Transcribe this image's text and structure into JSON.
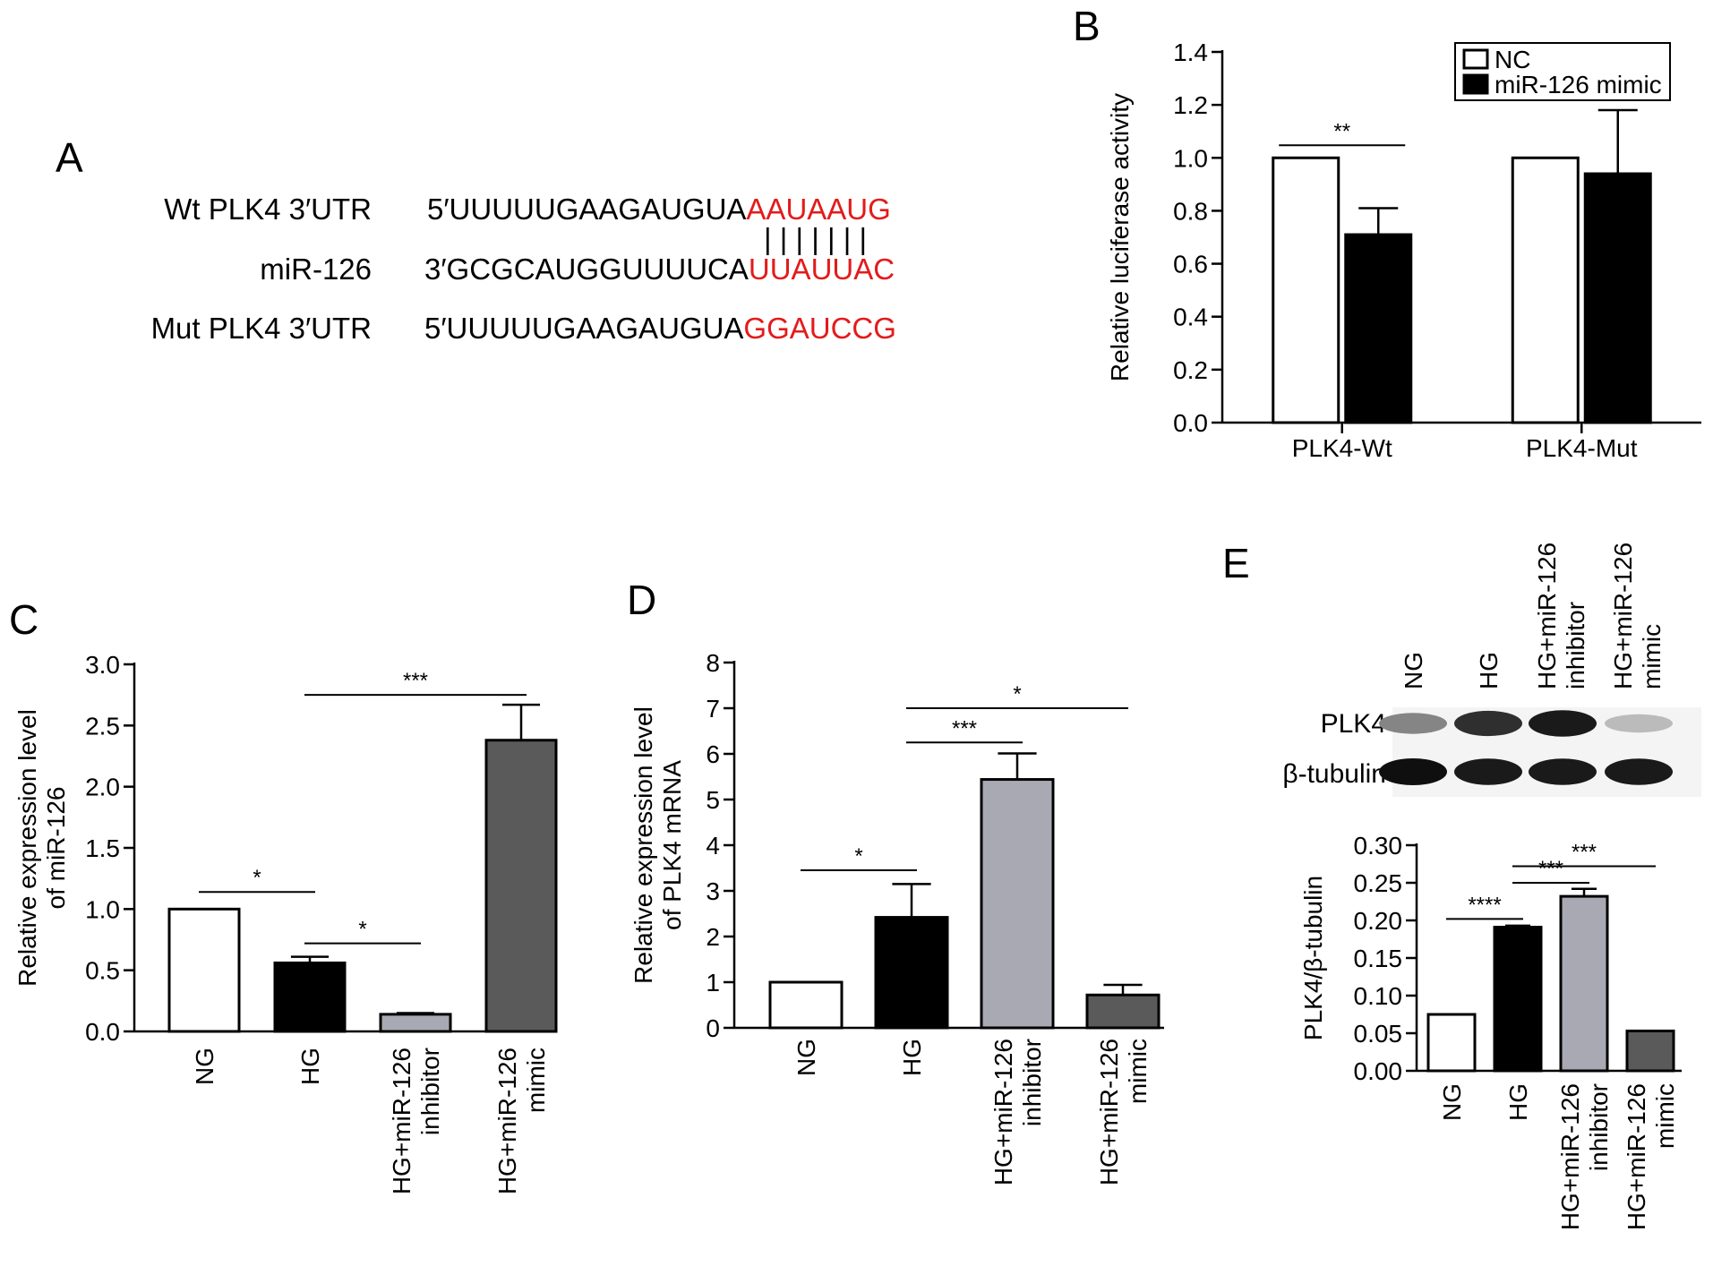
{
  "panel_a": {
    "letter": "A",
    "rows": [
      {
        "label": "Wt PLK4 3′UTR",
        "prefix": "5′UUUUUGAAGAUGUA",
        "highlight": "AAUAAUG"
      },
      {
        "label": "miR-126",
        "prefix": "3′GCGCAUGGUUUUCA",
        "highlight": "UUAUUAC"
      },
      {
        "label": "Mut PLK4 3′UTR",
        "prefix": "5′UUUUUGAAGAUGUA",
        "highlight": "GGAUCCG"
      }
    ],
    "pairing": "| | | | | | |",
    "highlight_color": "#e31b1b"
  },
  "panel_e_blot": {
    "letter": "E",
    "lanes": [
      [
        "NG"
      ],
      [
        "HG"
      ],
      [
        "HG+miR-126",
        "inhibitor"
      ],
      [
        "HG+miR-126",
        "mimic"
      ]
    ],
    "rows": [
      {
        "label": "PLK4",
        "intensity": [
          0.45,
          0.85,
          0.95,
          0.2
        ]
      },
      {
        "label": "β-tubulin",
        "intensity": [
          1.0,
          0.95,
          0.95,
          0.95
        ]
      }
    ]
  },
  "chart_data": [
    {
      "id": "B",
      "letter": "B",
      "type": "bar",
      "categories": [
        "PLK4-Wt",
        "PLK4-Mut"
      ],
      "series": [
        {
          "name": "NC",
          "values": [
            1.0,
            1.0
          ],
          "errors": [
            0,
            0
          ],
          "color": "#ffffff"
        },
        {
          "name": "miR-126 mimic",
          "values": [
            0.71,
            0.94
          ],
          "errors": [
            0.1,
            0.24
          ],
          "color": "#000000"
        }
      ],
      "ylabel": "Relative luciferase activity",
      "ylim": [
        0,
        1.4
      ],
      "yticks": [
        "0.0",
        "0.2",
        "0.4",
        "0.6",
        "0.8",
        "1.0",
        "1.2",
        "1.4"
      ],
      "legend_position": "top-right",
      "grid": false,
      "significance": [
        {
          "label": "**",
          "group": 0
        }
      ]
    },
    {
      "id": "C",
      "letter": "C",
      "type": "bar",
      "categories": [
        [
          "NG"
        ],
        [
          "HG"
        ],
        [
          "HG+miR-126",
          "inhibitor"
        ],
        [
          "HG+miR-126",
          "mimic"
        ]
      ],
      "values": [
        1.0,
        0.56,
        0.14,
        2.38
      ],
      "errors": [
        0,
        0.05,
        0.01,
        0.29
      ],
      "colors": [
        "#ffffff",
        "#000000",
        "#a9a9b3",
        "#5a5a5a"
      ],
      "ylabel": [
        "Relative expression level",
        "of miR-126"
      ],
      "ylim": [
        0,
        3.0
      ],
      "yticks": [
        "0.0",
        "0.5",
        "1.0",
        "1.5",
        "2.0",
        "2.5",
        "3.0"
      ],
      "grid": false,
      "significance": [
        {
          "label": "*",
          "from": 0,
          "to": 1,
          "y": 1.14
        },
        {
          "label": "*",
          "from": 1,
          "to": 2,
          "y": 0.72
        },
        {
          "label": "***",
          "from": 1,
          "to": 3,
          "y": 2.75
        }
      ]
    },
    {
      "id": "D",
      "letter": "D",
      "type": "bar",
      "categories": [
        [
          "NG"
        ],
        [
          "HG"
        ],
        [
          "HG+miR-126",
          "inhibitor"
        ],
        [
          "HG+miR-126",
          "mimic"
        ]
      ],
      "values": [
        1.0,
        2.42,
        5.44,
        0.72
      ],
      "errors": [
        0,
        0.73,
        0.57,
        0.22
      ],
      "colors": [
        "#ffffff",
        "#000000",
        "#a9a9b3",
        "#5a5a5a"
      ],
      "ylabel": [
        "Relative expression level",
        "of PLK4 mRNA"
      ],
      "ylim": [
        0,
        8
      ],
      "yticks": [
        "0",
        "1",
        "2",
        "3",
        "4",
        "5",
        "6",
        "7",
        "8"
      ],
      "grid": false,
      "significance": [
        {
          "label": "*",
          "from": 0,
          "to": 1,
          "y": 3.45
        },
        {
          "label": "***",
          "from": 1,
          "to": 2,
          "y": 6.25
        },
        {
          "label": "*",
          "from": 1,
          "to": 3,
          "y": 7.0
        }
      ]
    },
    {
      "id": "E",
      "letter": "",
      "type": "bar",
      "categories": [
        [
          "NG"
        ],
        [
          "HG"
        ],
        [
          "HG+miR-126",
          "inhibitor"
        ],
        [
          "HG+miR-126",
          "mimic"
        ]
      ],
      "values": [
        0.075,
        0.191,
        0.232,
        0.053
      ],
      "errors": [
        0,
        0.002,
        0.01,
        0
      ],
      "colors": [
        "#ffffff",
        "#000000",
        "#a9a9b3",
        "#5a5a5a"
      ],
      "ylabel": [
        "PLK4/β-tubulin"
      ],
      "ylim": [
        0,
        0.3
      ],
      "yticks": [
        "0.00",
        "0.05",
        "0.10",
        "0.15",
        "0.20",
        "0.25",
        "0.30"
      ],
      "grid": false,
      "significance": [
        {
          "label": "****",
          "from": 0,
          "to": 1,
          "y": 0.202
        },
        {
          "label": "***",
          "from": 1,
          "to": 2,
          "y": 0.25
        },
        {
          "label": "***",
          "from": 1,
          "to": 3,
          "y": 0.272
        }
      ]
    }
  ]
}
